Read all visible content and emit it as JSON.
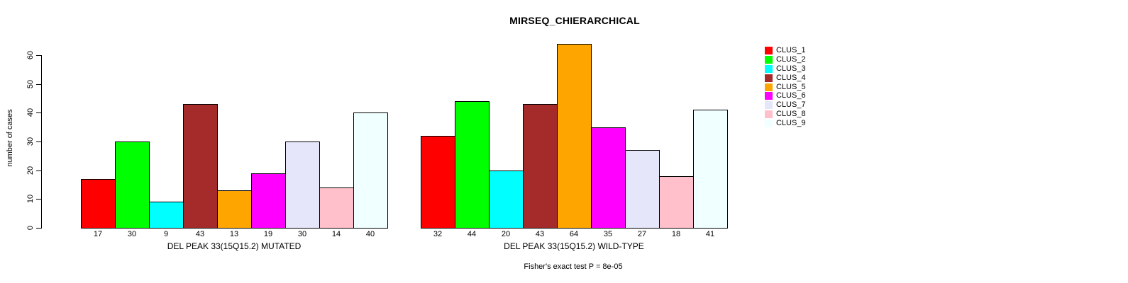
{
  "chart_data": {
    "type": "bar",
    "title": "MIRSEQ_CHIERARCHICAL",
    "ylabel": "number of cases",
    "ylim": [
      0,
      60
    ],
    "yticks": [
      0,
      10,
      20,
      30,
      40,
      50,
      60
    ],
    "grid": false,
    "legend_position": "right-outside",
    "categories": [
      "CLUS_1",
      "CLUS_2",
      "CLUS_3",
      "CLUS_4",
      "CLUS_5",
      "CLUS_6",
      "CLUS_7",
      "CLUS_8",
      "CLUS_9"
    ],
    "colors": [
      "#FF0000",
      "#00FF00",
      "#00FFFF",
      "#A52A2A",
      "#FFA500",
      "#FF00FF",
      "#E6E6FA",
      "#FFC0CB",
      "#F0FFFF"
    ],
    "series": [
      {
        "name": "DEL PEAK 33(15Q15.2) MUTATED",
        "values": [
          17,
          30,
          9,
          43,
          13,
          19,
          30,
          14,
          40
        ]
      },
      {
        "name": "DEL PEAK 33(15Q15.2) WILD-TYPE",
        "values": [
          32,
          44,
          20,
          43,
          64,
          35,
          27,
          18,
          41
        ]
      }
    ],
    "annotation": "Fisher's exact test P = 8e-05",
    "bar_value_labels_shown": true,
    "axis_color": "#000000",
    "background_color": "#FFFFFF"
  }
}
